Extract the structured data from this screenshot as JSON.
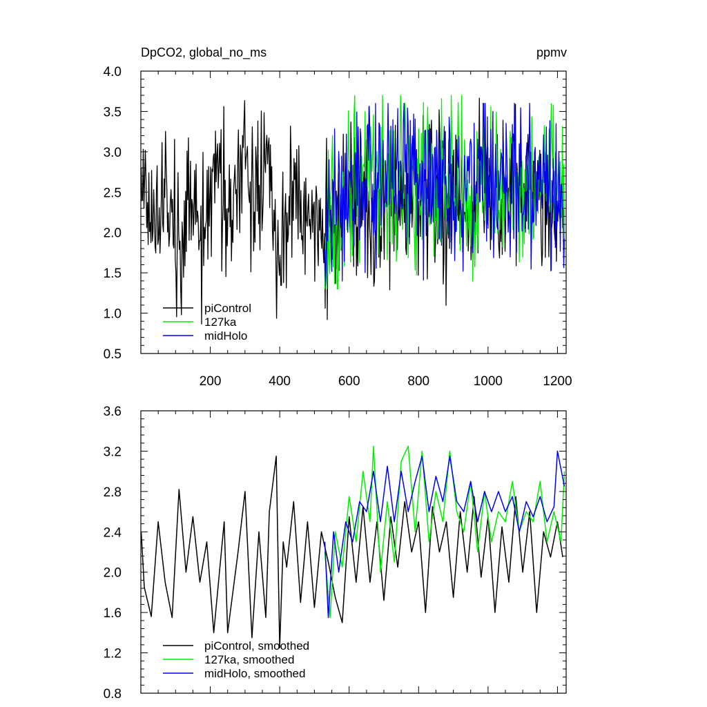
{
  "chart_data": [
    {
      "type": "line",
      "title": "DpCO2, global_no_ms",
      "units": "ppmv",
      "xlabel": "",
      "ylabel": "",
      "xlim": [
        0,
        1225
      ],
      "ylim": [
        0.5,
        4.0
      ],
      "xticks": [
        200,
        400,
        600,
        800,
        1000,
        1200
      ],
      "yticks": [
        0.5,
        1.0,
        1.5,
        2.0,
        2.5,
        3.0,
        3.5,
        4.0
      ],
      "ytick_labels": [
        "0.5",
        "1.0",
        "1.5",
        "2.0",
        "2.5",
        "3.0",
        "3.5",
        "4.0"
      ],
      "grid": false,
      "legend_position": "bottom-left",
      "series": [
        {
          "name": "piControl",
          "color": "#000000",
          "x_start": 1,
          "x_end": 1220,
          "points": [
            [
              1,
              2.9
            ],
            [
              40,
              2.0
            ],
            [
              60,
              2.4
            ],
            [
              80,
              2.6
            ],
            [
              100,
              2.1
            ],
            [
              120,
              1.9
            ],
            [
              140,
              2.7
            ],
            [
              160,
              2.2
            ],
            [
              180,
              1.9
            ],
            [
              200,
              2.3
            ],
            [
              220,
              2.5
            ],
            [
              240,
              2.5
            ],
            [
              260,
              2.0
            ],
            [
              280,
              2.6
            ],
            [
              300,
              2.8
            ],
            [
              320,
              2.3
            ],
            [
              340,
              2.2
            ],
            [
              360,
              3.0
            ],
            [
              380,
              2.2
            ],
            [
              400,
              1.6
            ],
            [
              420,
              2.3
            ],
            [
              440,
              2.2
            ],
            [
              460,
              2.2
            ],
            [
              480,
              2.3
            ],
            [
              500,
              2.2
            ],
            [
              520,
              2.3
            ],
            [
              540,
              2.0
            ],
            [
              560,
              2.2
            ],
            [
              580,
              2.3
            ],
            [
              600,
              2.4
            ],
            [
              620,
              2.3
            ],
            [
              640,
              2.6
            ],
            [
              660,
              2.3
            ],
            [
              680,
              2.0
            ],
            [
              700,
              2.4
            ],
            [
              720,
              2.6
            ],
            [
              740,
              2.3
            ],
            [
              760,
              2.1
            ],
            [
              780,
              2.6
            ],
            [
              800,
              2.3
            ],
            [
              820,
              2.6
            ],
            [
              840,
              2.6
            ],
            [
              860,
              2.4
            ],
            [
              880,
              2.2
            ],
            [
              900,
              2.7
            ],
            [
              920,
              2.3
            ],
            [
              940,
              2.5
            ],
            [
              960,
              2.2
            ],
            [
              980,
              2.6
            ],
            [
              1000,
              2.5
            ],
            [
              1020,
              2.2
            ],
            [
              1040,
              2.3
            ],
            [
              1060,
              2.5
            ],
            [
              1080,
              2.6
            ],
            [
              1100,
              2.2
            ],
            [
              1120,
              2.4
            ],
            [
              1140,
              2.5
            ],
            [
              1160,
              2.1
            ],
            [
              1180,
              2.3
            ],
            [
              1200,
              2.2
            ],
            [
              1220,
              2.4
            ]
          ],
          "range": [
            0.7,
            3.8
          ]
        },
        {
          "name": "127ka",
          "color": "#00ee00",
          "x_start": 530,
          "x_end": 1220,
          "points": [
            [
              530,
              2.2
            ],
            [
              560,
              2.3
            ],
            [
              600,
              2.5
            ],
            [
              640,
              2.8
            ],
            [
              680,
              2.6
            ],
            [
              720,
              2.4
            ],
            [
              760,
              2.7
            ],
            [
              800,
              2.6
            ],
            [
              840,
              2.5
            ],
            [
              880,
              2.6
            ],
            [
              920,
              2.6
            ],
            [
              960,
              2.4
            ],
            [
              1000,
              2.5
            ],
            [
              1040,
              2.5
            ],
            [
              1080,
              2.6
            ],
            [
              1120,
              2.5
            ],
            [
              1160,
              2.4
            ],
            [
              1200,
              2.6
            ],
            [
              1220,
              2.5
            ]
          ],
          "range": [
            1.3,
            3.7
          ]
        },
        {
          "name": "midHolo",
          "color": "#0000ee",
          "x_start": 530,
          "x_end": 1220,
          "points": [
            [
              530,
              2.1
            ],
            [
              560,
              2.3
            ],
            [
              600,
              2.6
            ],
            [
              640,
              2.7
            ],
            [
              680,
              2.7
            ],
            [
              720,
              2.6
            ],
            [
              760,
              2.7
            ],
            [
              800,
              2.6
            ],
            [
              840,
              2.6
            ],
            [
              880,
              2.5
            ],
            [
              920,
              2.6
            ],
            [
              960,
              2.6
            ],
            [
              1000,
              2.6
            ],
            [
              1040,
              2.6
            ],
            [
              1080,
              2.6
            ],
            [
              1120,
              2.6
            ],
            [
              1160,
              2.5
            ],
            [
              1200,
              2.6
            ],
            [
              1220,
              2.6
            ]
          ],
          "range": [
            1.2,
            3.6
          ]
        }
      ]
    },
    {
      "type": "line",
      "title": "",
      "xlabel": "",
      "ylabel": "",
      "xlim": [
        0,
        1225
      ],
      "ylim": [
        0.8,
        3.6
      ],
      "xticks": [
        200,
        400,
        600,
        800,
        1000,
        1200
      ],
      "yticks": [
        0.8,
        1.2,
        1.6,
        2.0,
        2.4,
        2.8,
        3.2,
        3.6
      ],
      "ytick_labels": [
        "0.8",
        "1.2",
        "1.6",
        "2.0",
        "2.4",
        "2.8",
        "3.2",
        "3.6"
      ],
      "grid": false,
      "legend_position": "bottom-left",
      "series": [
        {
          "name": "piControl, smoothed",
          "color": "#000000",
          "points": [
            [
              1,
              2.4
            ],
            [
              10,
              1.85
            ],
            [
              30,
              1.56
            ],
            [
              50,
              2.5
            ],
            [
              70,
              1.9
            ],
            [
              90,
              1.55
            ],
            [
              110,
              2.82
            ],
            [
              130,
              2.0
            ],
            [
              150,
              2.55
            ],
            [
              170,
              1.9
            ],
            [
              190,
              2.3
            ],
            [
              210,
              1.4
            ],
            [
              240,
              2.5
            ],
            [
              250,
              1.4
            ],
            [
              280,
              2.2
            ],
            [
              300,
              2.8
            ],
            [
              320,
              1.35
            ],
            [
              340,
              2.4
            ],
            [
              360,
              1.55
            ],
            [
              370,
              2.6
            ],
            [
              390,
              3.15
            ],
            [
              400,
              1.25
            ],
            [
              410,
              2.3
            ],
            [
              420,
              2.05
            ],
            [
              440,
              2.7
            ],
            [
              460,
              1.7
            ],
            [
              480,
              2.5
            ],
            [
              500,
              1.65
            ],
            [
              520,
              2.4
            ],
            [
              540,
              2.1
            ],
            [
              560,
              1.75
            ],
            [
              580,
              1.5
            ],
            [
              600,
              2.55
            ],
            [
              620,
              1.9
            ],
            [
              640,
              2.65
            ],
            [
              660,
              1.9
            ],
            [
              680,
              2.5
            ],
            [
              700,
              1.72
            ],
            [
              720,
              2.55
            ],
            [
              740,
              2.05
            ],
            [
              760,
              2.7
            ],
            [
              780,
              2.2
            ],
            [
              800,
              2.5
            ],
            [
              820,
              1.6
            ],
            [
              840,
              2.65
            ],
            [
              860,
              2.2
            ],
            [
              880,
              2.5
            ],
            [
              900,
              1.75
            ],
            [
              920,
              2.6
            ],
            [
              940,
              2.0
            ],
            [
              960,
              2.75
            ],
            [
              980,
              1.95
            ],
            [
              1000,
              2.55
            ],
            [
              1020,
              1.6
            ],
            [
              1040,
              2.45
            ],
            [
              1060,
              1.9
            ],
            [
              1080,
              2.75
            ],
            [
              1100,
              2.0
            ],
            [
              1120,
              2.6
            ],
            [
              1140,
              1.6
            ],
            [
              1160,
              2.4
            ],
            [
              1180,
              2.15
            ],
            [
              1200,
              2.5
            ],
            [
              1215,
              2.15
            ]
          ]
        },
        {
          "name": "127ka, smoothed",
          "color": "#00ee00",
          "points": [
            [
              530,
              2.2
            ],
            [
              545,
              1.55
            ],
            [
              560,
              2.4
            ],
            [
              580,
              2.05
            ],
            [
              600,
              2.75
            ],
            [
              620,
              2.3
            ],
            [
              640,
              3.0
            ],
            [
              660,
              2.5
            ],
            [
              670,
              3.25
            ],
            [
              690,
              2.0
            ],
            [
              710,
              2.7
            ],
            [
              730,
              2.1
            ],
            [
              750,
              3.1
            ],
            [
              770,
              3.25
            ],
            [
              790,
              2.4
            ],
            [
              810,
              3.2
            ],
            [
              830,
              2.3
            ],
            [
              850,
              2.8
            ],
            [
              870,
              2.5
            ],
            [
              890,
              3.2
            ],
            [
              910,
              2.6
            ],
            [
              930,
              2.4
            ],
            [
              950,
              2.9
            ],
            [
              970,
              2.2
            ],
            [
              990,
              2.8
            ],
            [
              1010,
              2.3
            ],
            [
              1030,
              2.6
            ],
            [
              1050,
              2.5
            ],
            [
              1070,
              2.9
            ],
            [
              1090,
              2.4
            ],
            [
              1110,
              2.6
            ],
            [
              1130,
              2.5
            ],
            [
              1150,
              2.9
            ],
            [
              1170,
              2.3
            ],
            [
              1190,
              2.6
            ],
            [
              1210,
              2.3
            ],
            [
              1220,
              3.0
            ]
          ]
        },
        {
          "name": "midHolo, smoothed",
          "color": "#0000ee",
          "points": [
            [
              530,
              2.3
            ],
            [
              540,
              1.55
            ],
            [
              555,
              2.4
            ],
            [
              570,
              2.0
            ],
            [
              590,
              2.5
            ],
            [
              610,
              2.3
            ],
            [
              630,
              2.7
            ],
            [
              650,
              2.6
            ],
            [
              670,
              3.0
            ],
            [
              690,
              2.5
            ],
            [
              710,
              3.05
            ],
            [
              730,
              2.5
            ],
            [
              750,
              3.0
            ],
            [
              770,
              2.6
            ],
            [
              790,
              2.9
            ],
            [
              810,
              3.15
            ],
            [
              830,
              2.6
            ],
            [
              850,
              2.95
            ],
            [
              870,
              2.7
            ],
            [
              890,
              3.15
            ],
            [
              910,
              2.7
            ],
            [
              930,
              2.6
            ],
            [
              950,
              2.9
            ],
            [
              970,
              2.5
            ],
            [
              990,
              2.8
            ],
            [
              1010,
              2.6
            ],
            [
              1030,
              2.8
            ],
            [
              1050,
              2.6
            ],
            [
              1070,
              2.75
            ],
            [
              1090,
              2.4
            ],
            [
              1110,
              2.7
            ],
            [
              1130,
              2.55
            ],
            [
              1150,
              2.75
            ],
            [
              1170,
              2.5
            ],
            [
              1190,
              2.65
            ],
            [
              1200,
              3.2
            ],
            [
              1220,
              2.85
            ]
          ]
        }
      ]
    }
  ]
}
